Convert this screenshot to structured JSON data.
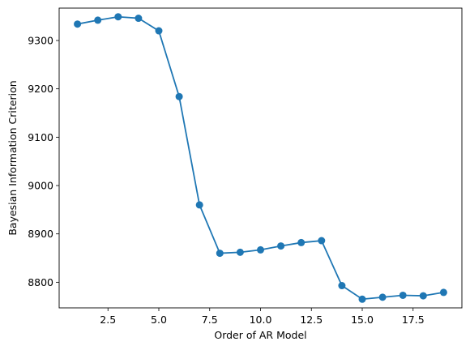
{
  "chart_data": {
    "type": "line",
    "title": "",
    "xlabel": "Order of AR Model",
    "ylabel": "Bayesian Information Criterion",
    "xlim": [
      0.1,
      19.9
    ],
    "ylim": [
      8747,
      9367
    ],
    "xticks": [
      2.5,
      5.0,
      7.5,
      10.0,
      12.5,
      15.0,
      17.5
    ],
    "xtick_labels": [
      "2.5",
      "5.0",
      "7.5",
      "10.0",
      "12.5",
      "15.0",
      "17.5"
    ],
    "yticks": [
      8800,
      8900,
      9000,
      9100,
      9200,
      9300
    ],
    "ytick_labels": [
      "8800",
      "8900",
      "9000",
      "9100",
      "9200",
      "9300"
    ],
    "grid": false,
    "color": "#1f77b4",
    "series": [
      {
        "x": [
          1,
          2,
          3,
          4,
          5,
          6,
          7,
          8,
          9,
          10,
          11,
          12,
          13,
          14,
          15,
          16,
          17,
          18,
          19
        ],
        "y": [
          9334,
          9342,
          9349,
          9346,
          9320,
          9184,
          8960,
          8860,
          8862,
          8867,
          8875,
          8882,
          8886,
          8793,
          8765,
          8769,
          8773,
          8772,
          8779
        ]
      }
    ]
  }
}
